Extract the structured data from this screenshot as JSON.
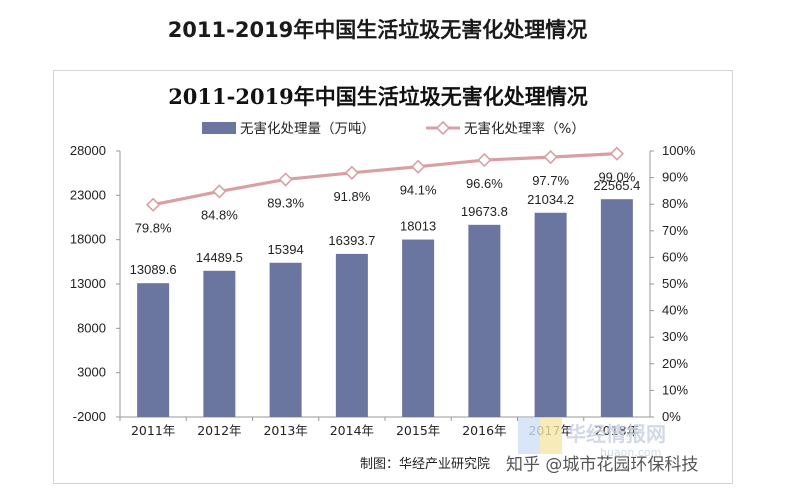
{
  "page": {
    "title": "2011-2019年中国生活垃圾无害化处理情况",
    "credit": "制图：华经产业研究院",
    "watermark_main": "华经情报网",
    "watermark_url": "huaon.com",
    "zhihu_mark": "知乎 @城市花园环保科技"
  },
  "chart_data": {
    "type": "bar+line",
    "title": "2011-2019年中国生活垃圾无害化处理情况",
    "categories": [
      "2011年",
      "2012年",
      "2013年",
      "2014年",
      "2015年",
      "2016年",
      "2017年",
      "2018年"
    ],
    "series": [
      {
        "name": "无害化处理量（万吨）",
        "type": "bar",
        "axis": "left",
        "color": "#6b76a0",
        "values": [
          13089.6,
          14489.5,
          15394,
          16393.7,
          18013,
          19673.8,
          21034.2,
          22565.4
        ],
        "labels": [
          "13089.6",
          "14489.5",
          "15394",
          "16393.7",
          "18013",
          "19673.8",
          "21034.2",
          "22565.4"
        ]
      },
      {
        "name": "无害化处理率（%）",
        "type": "line",
        "axis": "right",
        "color": "#d9a0a3",
        "values": [
          79.8,
          84.8,
          89.3,
          91.8,
          94.1,
          96.6,
          97.7,
          99.0
        ],
        "labels": [
          "79.8%",
          "84.8%",
          "89.3%",
          "91.8%",
          "94.1%",
          "96.6%",
          "97.7%",
          "99.0%"
        ]
      }
    ],
    "y_left": {
      "min": -2000,
      "max": 28000,
      "ticks": [
        -2000,
        3000,
        8000,
        13000,
        18000,
        23000,
        28000
      ]
    },
    "y_right": {
      "min": 0,
      "max": 100,
      "ticks": [
        "0%",
        "10%",
        "20%",
        "30%",
        "40%",
        "50%",
        "60%",
        "70%",
        "80%",
        "90%",
        "100%"
      ]
    },
    "legend_position": "top",
    "grid": false
  }
}
